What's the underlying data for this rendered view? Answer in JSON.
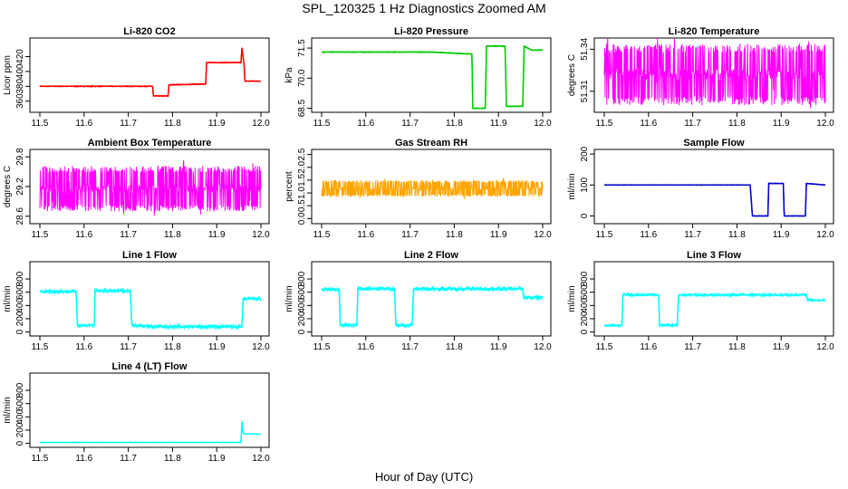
{
  "figure": {
    "title": "SPL_120325  1 Hz Diagnostics Zoomed AM",
    "xlabel": "Hour of Day (UTC)"
  },
  "chart_data": [
    {
      "type": "line",
      "title": "Li-820 CO2",
      "ylabel": "Licor ppm",
      "color": "#ff0000",
      "xlim": [
        11.5,
        12.0
      ],
      "ylim": [
        345,
        445
      ],
      "yticks": [
        360,
        380,
        400,
        420
      ],
      "noise": 0.6,
      "x": [
        11.5,
        11.755,
        11.757,
        11.79,
        11.792,
        11.875,
        11.877,
        11.955,
        11.957,
        11.962,
        11.964,
        12.0
      ],
      "y": [
        380,
        380,
        367,
        367,
        382,
        383,
        412,
        412,
        432,
        408,
        387,
        387
      ]
    },
    {
      "type": "line",
      "title": "Li-820 Pressure",
      "ylabel": "kPa",
      "color": "#00cc00",
      "xlim": [
        11.5,
        12.0
      ],
      "ylim": [
        68.3,
        72.0
      ],
      "yticks": [
        68.5,
        70.0,
        71.5
      ],
      "noise": 0.02,
      "x": [
        11.5,
        11.75,
        11.84,
        11.842,
        11.87,
        11.873,
        11.915,
        11.918,
        11.955,
        11.958,
        11.975,
        12.0
      ],
      "y": [
        71.3,
        71.3,
        71.2,
        68.5,
        68.5,
        71.6,
        71.6,
        68.6,
        68.6,
        71.6,
        71.4,
        71.4
      ]
    },
    {
      "type": "line",
      "title": "Li-820 Temperature",
      "ylabel": "degrees C",
      "color": "#ff00ff",
      "xlim": [
        11.5,
        12.0
      ],
      "ylim": [
        51.295,
        51.348
      ],
      "yticks": [
        51.31,
        51.34
      ],
      "noise": 0.0,
      "band_low": 51.3,
      "band_high": 51.344,
      "x": [
        11.5,
        12.0
      ],
      "y": [
        51.32,
        51.32
      ]
    },
    {
      "type": "line",
      "title": "Ambient Box Temperature",
      "ylabel": "degrees C",
      "color": "#ff00ff",
      "xlim": [
        11.5,
        12.0
      ],
      "ylim": [
        28.45,
        29.95
      ],
      "yticks": [
        28.6,
        29.2,
        29.8
      ],
      "noise": 0.0,
      "band_low": 28.7,
      "band_high": 29.62,
      "x": [
        11.5,
        12.0
      ],
      "y": [
        29.15,
        29.15
      ]
    },
    {
      "type": "line",
      "title": "Gas Stream RH",
      "ylabel": "percent",
      "color": "#ffa500",
      "xlim": [
        11.5,
        12.0
      ],
      "ylim": [
        -0.2,
        2.7
      ],
      "yticks": [
        0.0,
        0.5,
        1.0,
        1.5,
        2.0,
        2.5
      ],
      "noise": 0.0,
      "band_low": 0.85,
      "band_high": 1.5,
      "x": [
        11.5,
        12.0
      ],
      "y": [
        1.15,
        1.15
      ]
    },
    {
      "type": "line",
      "title": "Sample Flow",
      "ylabel": "ml/min",
      "color": "#0000cc",
      "xlim": [
        11.5,
        12.0
      ],
      "ylim": [
        -25,
        215
      ],
      "yticks": [
        0,
        100,
        200
      ],
      "noise": 0.8,
      "x": [
        11.5,
        11.83,
        11.835,
        11.87,
        11.872,
        11.905,
        11.907,
        11.955,
        11.957,
        12.0
      ],
      "y": [
        100,
        100,
        0,
        0,
        105,
        105,
        0,
        0,
        105,
        100
      ]
    },
    {
      "type": "line",
      "title": "Line 1 Flow",
      "ylabel": "ml/min",
      "color": "#00ffff",
      "xlim": [
        11.5,
        12.0
      ],
      "ylim": [
        -60,
        1060
      ],
      "yticks": [
        0,
        200,
        400,
        600,
        800
      ],
      "noise": 28,
      "x": [
        11.5,
        11.582,
        11.585,
        11.623,
        11.625,
        11.705,
        11.708,
        11.75,
        11.957,
        11.96,
        12.0
      ],
      "y": [
        610,
        610,
        100,
        100,
        620,
        620,
        110,
        80,
        80,
        500,
        500
      ]
    },
    {
      "type": "line",
      "title": "Line 2 Flow",
      "ylabel": "ml/min",
      "color": "#00ffff",
      "xlim": [
        11.5,
        12.0
      ],
      "ylim": [
        -60,
        1060
      ],
      "yticks": [
        0,
        200,
        400,
        600,
        800
      ],
      "noise": 28,
      "x": [
        11.5,
        11.54,
        11.542,
        11.58,
        11.582,
        11.665,
        11.668,
        11.705,
        11.708,
        11.955,
        11.957,
        12.0
      ],
      "y": [
        640,
        640,
        100,
        100,
        650,
        650,
        100,
        100,
        650,
        650,
        520,
        520
      ]
    },
    {
      "type": "line",
      "title": "Line 3 Flow",
      "ylabel": "ml/min",
      "color": "#00ffff",
      "xlim": [
        11.5,
        12.0
      ],
      "ylim": [
        -60,
        1060
      ],
      "yticks": [
        0,
        200,
        400,
        600,
        800
      ],
      "noise": 18,
      "x": [
        11.5,
        11.54,
        11.542,
        11.623,
        11.625,
        11.665,
        11.668,
        11.957,
        11.96,
        12.0
      ],
      "y": [
        100,
        100,
        560,
        560,
        100,
        100,
        560,
        560,
        480,
        480
      ]
    },
    {
      "type": "line",
      "title": "Line 4 (LT) Flow",
      "ylabel": "ml/min",
      "color": "#00ffff",
      "xlim": [
        11.5,
        12.0
      ],
      "ylim": [
        -60,
        1060
      ],
      "yticks": [
        0,
        200,
        400,
        600,
        800
      ],
      "noise": 1,
      "x": [
        11.5,
        11.955,
        11.957,
        11.959,
        11.962,
        12.0
      ],
      "y": [
        15,
        15,
        330,
        180,
        140,
        140
      ]
    }
  ]
}
